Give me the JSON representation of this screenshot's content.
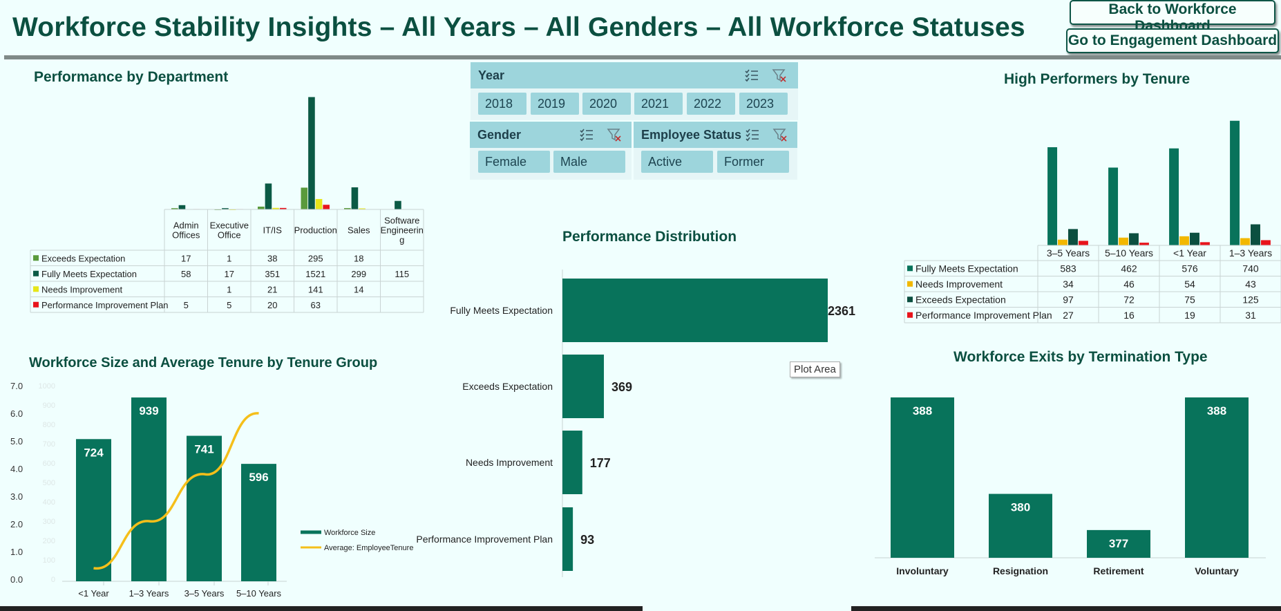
{
  "header": {
    "title": "Workforce Stability Insights – All Years – All Genders – All Workforce Statuses",
    "back_button": "Back to Workforce Dashboard",
    "engagement_button": "Go to Engagement Dashboard"
  },
  "slicers": {
    "year": {
      "title": "Year",
      "options": [
        "2018",
        "2019",
        "2020",
        "2021",
        "2022",
        "2023"
      ]
    },
    "gender": {
      "title": "Gender",
      "options": [
        "Female",
        "Male"
      ]
    },
    "status": {
      "title": "Employee Status",
      "options": [
        "Active",
        "Former"
      ]
    }
  },
  "tooltip": "Plot Area",
  "colors": {
    "dark_green": "#0b5a45",
    "chart_green": "#08735b",
    "light_green": "#5a9a3c",
    "yellow": "#e6e61a",
    "gold": "#f2b800",
    "red": "#e8141c",
    "line_yellow": "#f5bf1a"
  },
  "chart_data": [
    {
      "id": "perf_dept",
      "type": "bar",
      "title": "Performance by Department",
      "categories": [
        "Admin\nOffices",
        "Executive\nOffice",
        "IT/IS",
        "Production",
        "Sales",
        "Software\nEngineerin\ng"
      ],
      "series": [
        {
          "name": "Exceeds Expectation",
          "color": "#5a9a3c",
          "values": [
            17,
            1,
            38,
            295,
            18,
            null
          ]
        },
        {
          "name": "Fully Meets Expectation",
          "color": "#0b5a45",
          "values": [
            58,
            17,
            351,
            1521,
            299,
            115
          ]
        },
        {
          "name": "Needs Improvement",
          "color": "#e6e61a",
          "values": [
            null,
            1,
            21,
            141,
            14,
            null
          ]
        },
        {
          "name": "Performance Improvement Plan",
          "color": "#e8141c",
          "values": [
            5,
            5,
            20,
            63,
            null,
            null
          ]
        }
      ],
      "ylim": [
        0,
        1600
      ],
      "legend": "table-left"
    },
    {
      "id": "high_tenure",
      "type": "bar",
      "title": "High Performers by Tenure",
      "categories": [
        "3–5 Years",
        "5–10 Years",
        "<1 Year",
        "1–3 Years"
      ],
      "series": [
        {
          "name": "Fully Meets Expectation",
          "color": "#08735b",
          "values": [
            583,
            462,
            576,
            740
          ]
        },
        {
          "name": "Needs Improvement",
          "color": "#f2b800",
          "values": [
            34,
            46,
            54,
            43
          ]
        },
        {
          "name": "Exceeds Expectation",
          "color": "#0b4f40",
          "values": [
            97,
            72,
            75,
            125
          ]
        },
        {
          "name": "Performance Improvement Plan",
          "color": "#e8141c",
          "values": [
            27,
            16,
            19,
            31
          ]
        }
      ],
      "ylim": [
        0,
        780
      ],
      "legend": "table-left"
    },
    {
      "id": "perf_dist",
      "type": "bar",
      "orientation": "horizontal",
      "title": "Performance Distribution",
      "categories": [
        "Fully Meets Expectation",
        "Exceeds Expectation",
        "Needs Improvement",
        "Performance Improvement Plan"
      ],
      "values": [
        2361,
        369,
        177,
        93
      ],
      "xlim": [
        0,
        2500
      ]
    },
    {
      "id": "workforce_size",
      "type": "bar",
      "title": "Workforce Size and Average Tenure by Tenure Group",
      "categories": [
        "<1 Year",
        "1–3 Years",
        "3–5 Years",
        "5–10 Years"
      ],
      "series": [
        {
          "name": "Workforce Size",
          "type": "bar",
          "axis": "secondary",
          "values": [
            724,
            939,
            741,
            596
          ]
        },
        {
          "name": "Average: EmployeeTenure",
          "type": "line",
          "axis": "primary",
          "values": [
            0.4,
            2.1,
            3.8,
            6.0
          ]
        }
      ],
      "y_primary": {
        "min": 0,
        "max": 7,
        "ticks": [
          "0.0",
          "1.0",
          "2.0",
          "3.0",
          "4.0",
          "5.0",
          "6.0",
          "7.0"
        ]
      },
      "y_secondary": {
        "min": 0,
        "max": 1000,
        "ticks": [
          "0",
          "100",
          "200",
          "300",
          "400",
          "500",
          "600",
          "700",
          "800",
          "900",
          "1000"
        ]
      },
      "legend": "right"
    },
    {
      "id": "exits",
      "type": "bar",
      "title": "Workforce Exits by Termination Type",
      "categories": [
        "Involuntary",
        "Resignation",
        "Retirement",
        "Voluntary"
      ],
      "values": [
        388,
        380,
        377,
        388
      ],
      "ylim": [
        370,
        388
      ]
    }
  ]
}
